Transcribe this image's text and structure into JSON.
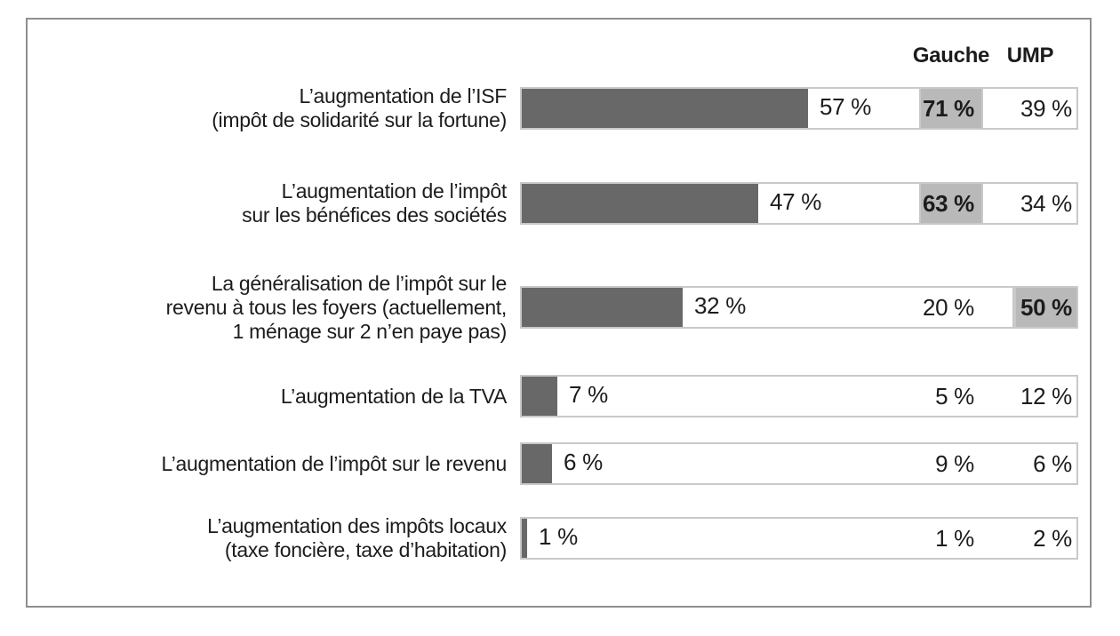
{
  "colors": {
    "bar_fill": "#686868",
    "highlight_bg": "#b9b9b9",
    "row_border": "#c9c9c9",
    "frame_border": "#8f8f8f",
    "text": "#1c1c1c"
  },
  "header": {
    "gauche": "Gauche",
    "ump": "UMP"
  },
  "rows": [
    {
      "label_lines": [
        "L’augmentation de l’ISF",
        "(impôt de solidarité sur la fortune)"
      ],
      "value": 57,
      "value_label": "57 %",
      "gauche_value": 71,
      "gauche_label": "71 %",
      "ump_value": 39,
      "ump_label": "39 %",
      "highlight": "gauche"
    },
    {
      "label_lines": [
        "L’augmentation de l’impôt",
        "sur les bénéfices des sociétés"
      ],
      "value": 47,
      "value_label": "47 %",
      "gauche_value": 63,
      "gauche_label": "63 %",
      "ump_value": 34,
      "ump_label": "34 %",
      "highlight": "gauche"
    },
    {
      "label_lines": [
        "La généralisation de l’impôt sur le",
        "revenu à tous les foyers (actuellement,",
        "1 ménage sur 2 n’en paye pas)"
      ],
      "value": 32,
      "value_label": "32 %",
      "gauche_value": 20,
      "gauche_label": "20 %",
      "ump_value": 50,
      "ump_label": "50 %",
      "highlight": "ump"
    },
    {
      "label_lines": [
        "L’augmentation de la TVA"
      ],
      "value": 7,
      "value_label": "7 %",
      "gauche_value": 5,
      "gauche_label": "5 %",
      "ump_value": 12,
      "ump_label": "12 %",
      "highlight": null
    },
    {
      "label_lines": [
        "L’augmentation de l’impôt sur le revenu"
      ],
      "value": 6,
      "value_label": "6 %",
      "gauche_value": 9,
      "gauche_label": "9 %",
      "ump_value": 6,
      "ump_label": "6 %",
      "highlight": null
    },
    {
      "label_lines": [
        "L’augmentation des impôts locaux",
        "(taxe foncière, taxe d’habitation)"
      ],
      "value": 1,
      "value_label": "1 %",
      "gauche_value": 1,
      "gauche_label": "1 %",
      "ump_value": 2,
      "ump_label": "2 %",
      "highlight": null
    }
  ],
  "chart_data": {
    "type": "bar",
    "orientation": "horizontal",
    "unit": "%",
    "categories": [
      "L’augmentation de l’ISF (impôt de solidarité sur la fortune)",
      "L’augmentation de l’impôt sur les bénéfices des sociétés",
      "La généralisation de l’impôt sur le revenu à tous les foyers (actuellement, 1 ménage sur 2 n’en paye pas)",
      "L’augmentation de la TVA",
      "L’augmentation de l’impôt sur le revenu",
      "L’augmentation des impôts locaux (taxe foncière, taxe d’habitation)"
    ],
    "series": [
      {
        "name": "",
        "values": [
          57,
          47,
          32,
          7,
          6,
          1
        ]
      },
      {
        "name": "Gauche",
        "values": [
          71,
          63,
          20,
          5,
          9,
          1
        ]
      },
      {
        "name": "UMP",
        "values": [
          39,
          34,
          50,
          12,
          6,
          2
        ]
      }
    ],
    "highlighted_cells": [
      {
        "row": 0,
        "column": "Gauche",
        "value": 71
      },
      {
        "row": 1,
        "column": "Gauche",
        "value": 63
      },
      {
        "row": 2,
        "column": "UMP",
        "value": 50
      }
    ],
    "xlim": [
      0,
      100
    ],
    "legend_position": "top-right-column-headers",
    "grid": false
  }
}
